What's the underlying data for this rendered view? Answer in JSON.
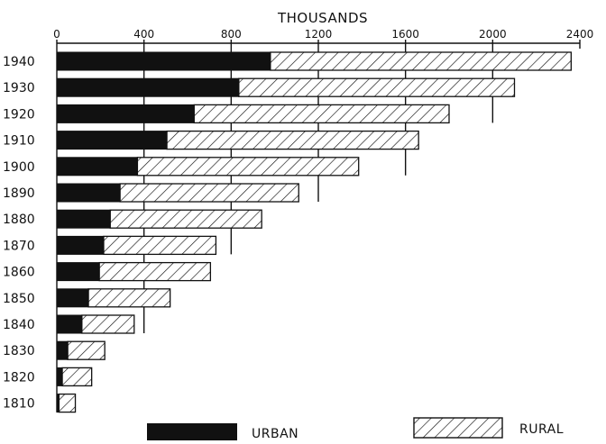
{
  "chart_data": {
    "type": "bar",
    "orientation": "horizontal",
    "stacked": true,
    "title": "",
    "xlabel": "THOUSANDS",
    "ylabel": "",
    "x_axis_position": "top",
    "xlim": [
      0,
      2400
    ],
    "x_ticks": [
      0,
      400,
      800,
      1200,
      1600,
      2000,
      2400
    ],
    "x_tick_labels": [
      "0",
      "400",
      "800",
      "1200",
      "1600",
      "2000",
      "2400"
    ],
    "grid": "vertical lines at ticks",
    "categories": [
      "1940",
      "1930",
      "1920",
      "1910",
      "1900",
      "1890",
      "1880",
      "1870",
      "1860",
      "1850",
      "1840",
      "1830",
      "1820",
      "1810"
    ],
    "series": [
      {
        "name": "URBAN",
        "style": "solid black",
        "values": [
          980,
          835,
          630,
          505,
          370,
          290,
          245,
          215,
          195,
          145,
          115,
          50,
          25,
          10
        ]
      },
      {
        "name": "RURAL",
        "style": "diagonal hatch",
        "values": [
          1380,
          1265,
          1170,
          1155,
          1015,
          820,
          695,
          515,
          510,
          375,
          240,
          170,
          135,
          75
        ]
      }
    ],
    "legend": {
      "position": "bottom",
      "items": [
        "URBAN",
        "RURAL"
      ]
    }
  }
}
